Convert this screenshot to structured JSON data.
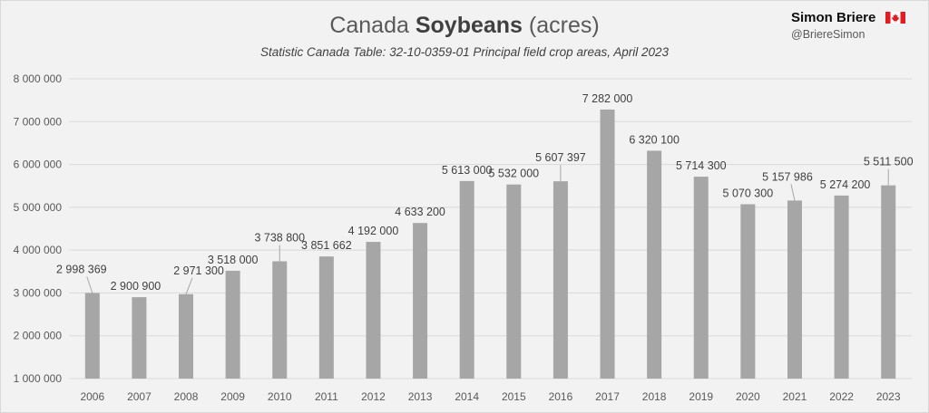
{
  "header": {
    "title_prefix": "Canada ",
    "title_bold": "Soybeans",
    "title_suffix": " (acres)",
    "subtitle": "Statistic Canada Table: 32-10-0359-01 Principal field crop areas, April 2023"
  },
  "brand": {
    "name": "Simon Briere",
    "handle": "@BriereSimon",
    "flag_color": "#e31b23"
  },
  "colors": {
    "bar": "#a6a6a6",
    "grid": "#d9d9d9",
    "leader": "#a6a6a6"
  },
  "chart_data": {
    "type": "bar",
    "title": "Canada Soybeans (acres)",
    "subtitle": "Statistic Canada Table: 32-10-0359-01 Principal field crop areas, April 2023",
    "categories": [
      "2006",
      "2007",
      "2008",
      "2009",
      "2010",
      "2011",
      "2012",
      "2013",
      "2014",
      "2015",
      "2016",
      "2017",
      "2018",
      "2019",
      "2020",
      "2021",
      "2022",
      "2023"
    ],
    "values": [
      2998369,
      2900900,
      2971300,
      3518000,
      3738800,
      3851662,
      4192000,
      4633200,
      5613000,
      5532000,
      5607397,
      7282000,
      6320100,
      5714300,
      5070300,
      5157986,
      5274200,
      5511500
    ],
    "value_labels": [
      "2 998 369",
      "2 900 900",
      "2 971 300",
      "3 518 000",
      "3 738 800",
      "3 851 662",
      "4 192 000",
      "4 633 200",
      "5 613 000",
      "5 532 000",
      "5 607 397",
      "7 282 000",
      "6 320 100",
      "5 714 300",
      "5 070 300",
      "5 157 986",
      "5 274 200",
      "5 511 500"
    ],
    "ylim": [
      1000000,
      8000000
    ],
    "yticks": [
      1000000,
      2000000,
      3000000,
      4000000,
      5000000,
      6000000,
      7000000,
      8000000
    ],
    "ytick_labels": [
      "1 000 000",
      "2 000 000",
      "3 000 000",
      "4 000 000",
      "5 000 000",
      "6 000 000",
      "7 000 000",
      "8 000 000"
    ],
    "xlabel": "",
    "ylabel": "",
    "grid": true,
    "legend": "none"
  }
}
